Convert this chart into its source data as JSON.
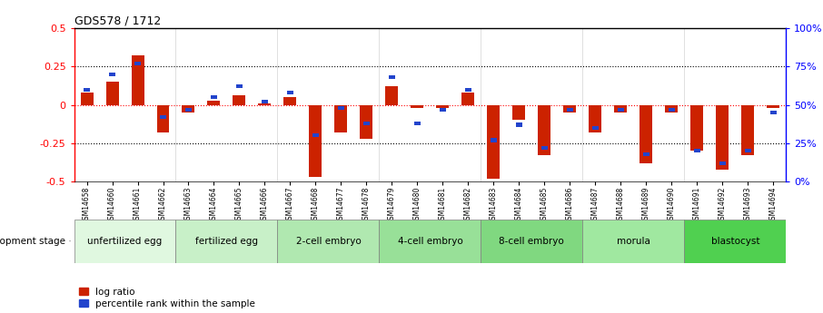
{
  "title": "GDS578 / 1712",
  "samples": [
    "GSM14658",
    "GSM14660",
    "GSM14661",
    "GSM14662",
    "GSM14663",
    "GSM14664",
    "GSM14665",
    "GSM14666",
    "GSM14667",
    "GSM14668",
    "GSM14677",
    "GSM14678",
    "GSM14679",
    "GSM14680",
    "GSM14681",
    "GSM14682",
    "GSM14683",
    "GSM14684",
    "GSM14685",
    "GSM14686",
    "GSM14687",
    "GSM14688",
    "GSM14689",
    "GSM14690",
    "GSM14691",
    "GSM14692",
    "GSM14693",
    "GSM14694"
  ],
  "log_ratio": [
    0.08,
    0.15,
    0.32,
    -0.18,
    -0.05,
    0.03,
    0.06,
    0.01,
    0.05,
    -0.47,
    -0.18,
    -0.22,
    0.12,
    -0.02,
    -0.02,
    0.08,
    -0.48,
    -0.1,
    -0.33,
    -0.05,
    -0.18,
    -0.05,
    -0.38,
    -0.05,
    -0.3,
    -0.42,
    -0.33,
    -0.02
  ],
  "percentile_rank": [
    0.6,
    0.7,
    0.77,
    0.42,
    0.47,
    0.55,
    0.62,
    0.52,
    0.58,
    0.3,
    0.48,
    0.38,
    0.68,
    0.38,
    0.47,
    0.6,
    0.27,
    0.37,
    0.22,
    0.47,
    0.35,
    0.47,
    0.18,
    0.47,
    0.2,
    0.12,
    0.2,
    0.45
  ],
  "stages": [
    {
      "label": "unfertilized egg",
      "start": 0,
      "end": 4,
      "color": "#e0f8e0"
    },
    {
      "label": "fertilized egg",
      "start": 4,
      "end": 8,
      "color": "#c8f0c8"
    },
    {
      "label": "2-cell embryo",
      "start": 8,
      "end": 12,
      "color": "#b0e8b0"
    },
    {
      "label": "4-cell embryo",
      "start": 12,
      "end": 16,
      "color": "#98e098"
    },
    {
      "label": "8-cell embryo",
      "start": 16,
      "end": 20,
      "color": "#80d880"
    },
    {
      "label": "morula",
      "start": 20,
      "end": 24,
      "color": "#a0e8a0"
    },
    {
      "label": "blastocyst",
      "start": 24,
      "end": 28,
      "color": "#50d050"
    }
  ],
  "bar_color_red": "#cc2200",
  "bar_color_blue": "#2244cc",
  "ylim": [
    -0.5,
    0.5
  ],
  "yticks_left": [
    -0.5,
    -0.25,
    0.0,
    0.25,
    0.5
  ],
  "yticks_right": [
    0,
    25,
    50,
    75,
    100
  ]
}
